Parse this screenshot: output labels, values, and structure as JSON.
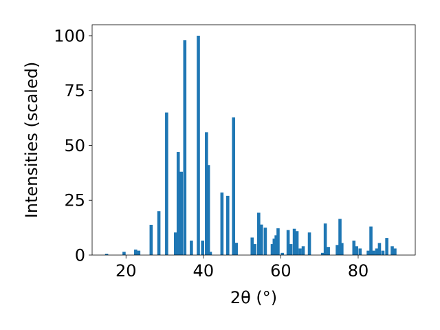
{
  "chart_data": {
    "type": "bar",
    "xlabel": "2θ (°)",
    "ylabel": "Intensities (scaled)",
    "xlim": [
      11.25,
      94.75
    ],
    "ylim": [
      0,
      105
    ],
    "xticks": [
      20,
      40,
      60,
      80
    ],
    "yticks": [
      0,
      25,
      50,
      75,
      100
    ],
    "bar_color": "#1f77b4",
    "grid": false,
    "x": [
      15.0,
      19.5,
      22.5,
      23.3,
      26.5,
      28.5,
      30.5,
      32.8,
      33.5,
      34.3,
      35.2,
      36.9,
      38.7,
      39.8,
      40.8,
      41.3,
      41.8,
      44.8,
      46.3,
      47.8,
      48.5,
      52.6,
      53.3,
      54.3,
      55.0,
      56.0,
      57.8,
      58.3,
      58.8,
      59.3,
      60.4,
      61.9,
      62.6,
      63.5,
      64.2,
      65.0,
      65.8,
      67.4,
      70.8,
      71.5,
      72.3,
      74.6,
      75.3,
      75.8,
      78.9,
      79.6,
      80.5,
      82.6,
      83.3,
      84.0,
      84.8,
      85.5,
      86.4,
      87.4,
      88.8,
      89.5
    ],
    "values": [
      0.6,
      1.5,
      2.5,
      2.0,
      13.8,
      20.0,
      65.0,
      10.3,
      47.0,
      38.0,
      98.0,
      6.6,
      100.0,
      6.6,
      56.0,
      41.0,
      1.5,
      28.5,
      27.0,
      62.8,
      5.6,
      8.0,
      5.0,
      19.3,
      13.9,
      12.5,
      5.0,
      7.5,
      9.0,
      12.2,
      1.0,
      11.4,
      5.0,
      12.0,
      10.9,
      3.0,
      4.0,
      10.3,
      1.0,
      14.4,
      3.7,
      4.6,
      16.5,
      5.5,
      6.6,
      4.0,
      3.0,
      2.0,
      13.0,
      2.0,
      3.0,
      5.5,
      2.0,
      7.8,
      4.0,
      3.0
    ]
  }
}
